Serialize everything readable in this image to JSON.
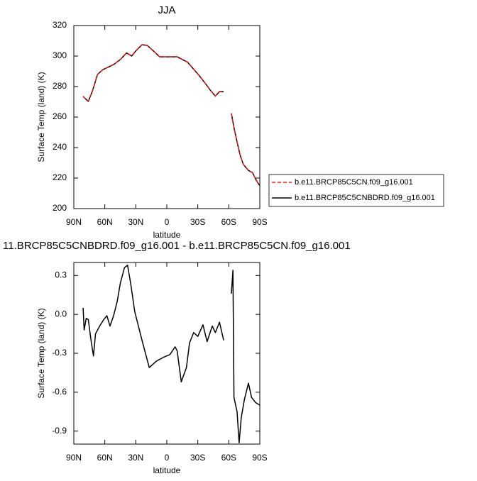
{
  "chart_data": [
    {
      "type": "line",
      "title": "JJA",
      "x_label": "latitude",
      "y_label": "Surface Temp (land) (K)",
      "x": [
        81,
        76,
        72,
        67,
        62,
        51.5,
        45,
        39,
        34,
        30,
        24,
        19,
        14,
        7,
        0,
        -10,
        -20,
        -31,
        -38,
        -42,
        -47,
        -51,
        -55,
        -59,
        -62.5,
        -65,
        -68,
        -71,
        -74,
        -79,
        -83,
        -87,
        -90
      ],
      "series": [
        {
          "name": "b.e11.BRCP85C5CN.f09_g16.001",
          "color": "#e41a1c",
          "dashed": true,
          "values": [
            273.6,
            270.3,
            277.2,
            288,
            291.1,
            294.5,
            297.8,
            302.1,
            300.2,
            303.4,
            307.5,
            307.1,
            304,
            299.6,
            299.5,
            299.6,
            296.1,
            287.6,
            281.5,
            277.8,
            273.8,
            276.8,
            276.8,
            null,
            262.5,
            253.2,
            243.9,
            235.1,
            229.1,
            225.1,
            223.6,
            218.1,
            215.2
          ]
        },
        {
          "name": "b.e11.BRCP85C5CNBDRD.f09_g16.001",
          "color": "#000000",
          "dashed": false,
          "values": [
            273.5,
            270.2,
            277,
            288,
            291,
            294.4,
            297.7,
            302,
            300,
            303.3,
            307.4,
            307,
            304,
            299.5,
            299.5,
            299.5,
            296,
            287.5,
            281.4,
            277.7,
            273.7,
            276.7,
            276.7,
            null,
            262.3,
            253,
            243.7,
            235,
            229,
            225,
            223.5,
            218,
            215
          ]
        }
      ],
      "xlim": [
        90,
        -90
      ],
      "xticks": [
        {
          "value": 90,
          "label": "90N"
        },
        {
          "value": 60,
          "label": "60N"
        },
        {
          "value": 30,
          "label": "30N"
        },
        0,
        {
          "value": -30,
          "label": "30S"
        },
        {
          "value": -60,
          "label": "60S"
        },
        {
          "value": -90,
          "label": "90S"
        }
      ],
      "ylim": [
        200,
        320
      ],
      "yticks": [
        200,
        220,
        240,
        260,
        280,
        300,
        320
      ],
      "legend": "lower right"
    },
    {
      "type": "line",
      "title": "11.BRCP85C5CNBDRD.f09_g16.001 - b.e11.BRCP85C5CN.f09_g16.001",
      "x_label": "latitude",
      "y_label": "Surface Temp (land) (K)",
      "x": [
        81,
        80,
        78,
        76,
        73,
        71,
        69,
        65,
        61,
        58,
        55,
        51.5,
        48,
        45,
        41,
        38,
        35,
        31,
        24,
        17,
        10,
        3,
        -3,
        -8,
        -10,
        -14,
        -19,
        -22,
        -26,
        -30,
        -35,
        -39,
        -44,
        -47,
        -51,
        -55,
        -59,
        -62.5,
        -64,
        -65,
        -68,
        -70,
        -72,
        -75,
        -79,
        -82,
        -86,
        -90
      ],
      "series": [
        {
          "color": "#000000",
          "dashed": false,
          "values": [
            0.05,
            -0.12,
            -0.03,
            -0.04,
            -0.22,
            -0.32,
            -0.15,
            -0.09,
            -0.04,
            -0.01,
            -0.09,
            -0.01,
            0.1,
            0.24,
            0.36,
            0.38,
            0.24,
            0.02,
            -0.2,
            -0.41,
            -0.36,
            -0.33,
            -0.31,
            -0.25,
            -0.28,
            -0.52,
            -0.41,
            -0.22,
            -0.14,
            -0.17,
            -0.08,
            -0.21,
            -0.09,
            -0.14,
            -0.06,
            -0.2,
            null,
            0.16,
            0.34,
            -0.64,
            -0.75,
            -0.99,
            -0.8,
            -0.66,
            -0.53,
            -0.64,
            -0.68,
            -0.7
          ]
        }
      ],
      "xlim": [
        90,
        -90
      ],
      "xticks": [
        {
          "value": 90,
          "label": "90N"
        },
        {
          "value": 60,
          "label": "60N"
        },
        {
          "value": 30,
          "label": "30N"
        },
        0,
        {
          "value": -30,
          "label": "30S"
        },
        {
          "value": -60,
          "label": "60S"
        },
        {
          "value": -90,
          "label": "90S"
        }
      ],
      "ylim": [
        -1,
        0.4
      ],
      "yticks": [
        -0.9,
        -0.6,
        -0.3,
        {
          "value": 0,
          "label": "0.0"
        },
        0.3
      ]
    }
  ]
}
